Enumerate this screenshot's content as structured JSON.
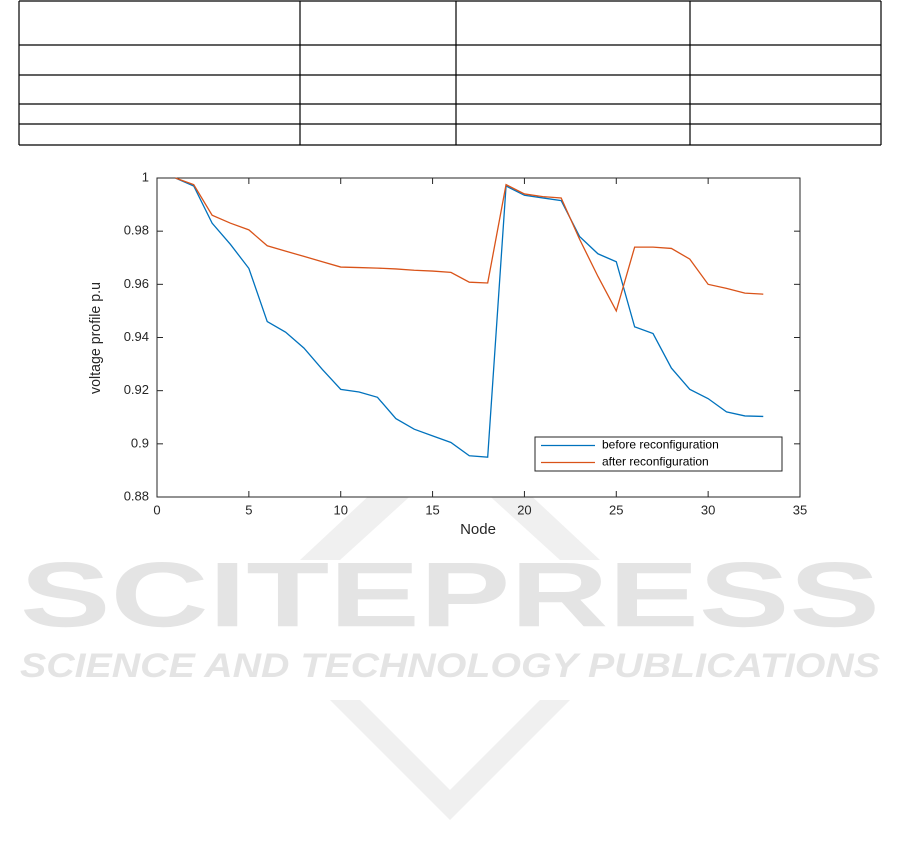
{
  "watermark": {
    "title": "SCITEPRESS",
    "subtitle": "SCIENCE AND TECHNOLOGY PUBLICATIONS"
  },
  "chart_data": {
    "type": "line",
    "xlabel": "Node",
    "ylabel": "voltage profile p.u",
    "x": [
      1,
      2,
      3,
      4,
      5,
      6,
      7,
      8,
      9,
      10,
      11,
      12,
      13,
      14,
      15,
      16,
      17,
      18,
      19,
      20,
      21,
      22,
      23,
      24,
      25,
      26,
      27,
      28,
      29,
      30,
      31,
      32,
      33
    ],
    "series": [
      {
        "name": "before reconfiguration",
        "color": "#0072bd",
        "values": [
          1.0,
          0.997,
          0.983,
          0.975,
          0.966,
          0.946,
          0.942,
          0.936,
          0.928,
          0.9205,
          0.9195,
          0.9175,
          0.9095,
          0.9055,
          0.903,
          0.9005,
          0.8955,
          0.895,
          0.997,
          0.9935,
          0.9925,
          0.9915,
          0.978,
          0.9715,
          0.9685,
          0.944,
          0.9415,
          0.9285,
          0.9205,
          0.917,
          0.912,
          0.9105,
          0.9103
        ]
      },
      {
        "name": "after reconfiguration",
        "color": "#d95319",
        "values": [
          1.0,
          0.9975,
          0.986,
          0.983,
          0.9805,
          0.9745,
          0.9725,
          0.9705,
          0.9685,
          0.9665,
          0.9663,
          0.9661,
          0.9658,
          0.9653,
          0.965,
          0.9645,
          0.9608,
          0.9605,
          0.9975,
          0.994,
          0.993,
          0.9925,
          0.977,
          0.963,
          0.95,
          0.974,
          0.974,
          0.9735,
          0.9695,
          0.96,
          0.9585,
          0.9567,
          0.9563
        ]
      }
    ],
    "xlim": [
      0,
      35
    ],
    "xticks": [
      0,
      5,
      10,
      15,
      20,
      25,
      30,
      35
    ],
    "ylim": [
      0.88,
      1
    ],
    "yticks": [
      0.88,
      0.9,
      0.92,
      0.94,
      0.96,
      0.98,
      1
    ],
    "grid": false,
    "legend_loc": "lower right"
  }
}
